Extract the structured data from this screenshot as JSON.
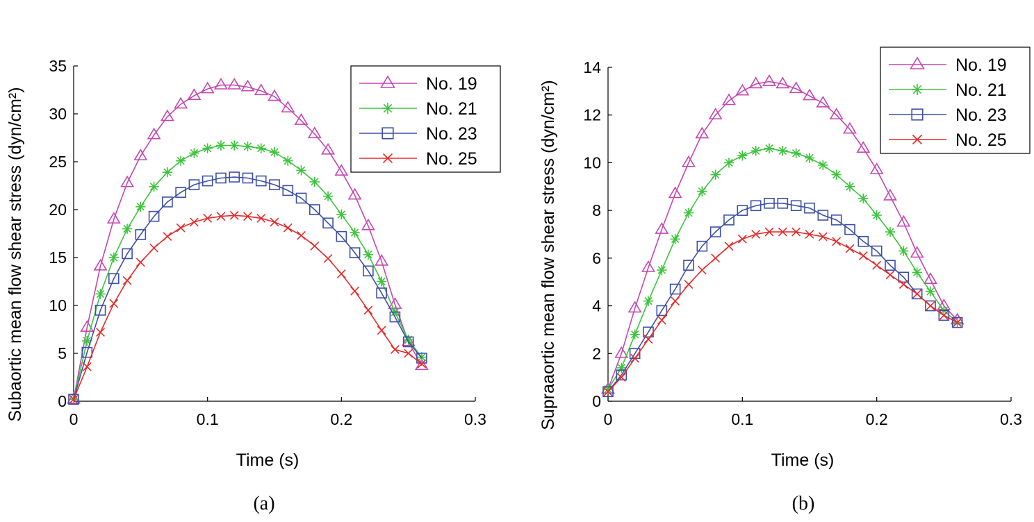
{
  "chart_data": [
    {
      "type": "line",
      "panel_label": "(a)",
      "title": "",
      "xlabel": "Time (s)",
      "ylabel": "Subaortic mean flow shear stress (dyn/cm²)",
      "xlim": [
        0,
        0.3
      ],
      "ylim": [
        0,
        35
      ],
      "xticks": [
        0,
        0.1,
        0.2,
        0.3
      ],
      "xtick_labels": [
        "0",
        "0.1",
        "0.2",
        "0.3"
      ],
      "yticks": [
        0,
        5,
        10,
        15,
        20,
        25,
        30,
        35
      ],
      "ytick_labels": [
        "0",
        "5",
        "10",
        "15",
        "20",
        "25",
        "30",
        "35"
      ],
      "grid": false,
      "legend_position": "top-right",
      "x": [
        0,
        0.01,
        0.02,
        0.03,
        0.04,
        0.05,
        0.06,
        0.07,
        0.08,
        0.09,
        0.1,
        0.11,
        0.12,
        0.13,
        0.14,
        0.15,
        0.16,
        0.17,
        0.18,
        0.19,
        0.2,
        0.21,
        0.22,
        0.23,
        0.24,
        0.25,
        0.26
      ],
      "series": [
        {
          "name": "No. 19",
          "color": "#c646b2",
          "marker": "triangle",
          "values": [
            0.2,
            7.7,
            14.1,
            19.0,
            22.8,
            25.6,
            27.8,
            29.7,
            31.0,
            31.9,
            32.6,
            33.0,
            33.0,
            32.8,
            32.4,
            31.8,
            30.6,
            29.3,
            27.9,
            26.2,
            24.0,
            21.5,
            18.3,
            14.6,
            10.1,
            6.2,
            3.7
          ]
        },
        {
          "name": "No. 21",
          "color": "#3dc43d",
          "marker": "asterisk",
          "values": [
            0.2,
            6.3,
            11.2,
            15.0,
            18.0,
            20.3,
            22.4,
            23.9,
            25.1,
            25.9,
            26.4,
            26.7,
            26.7,
            26.6,
            26.4,
            26.0,
            25.1,
            24.1,
            22.9,
            21.4,
            19.5,
            17.6,
            15.3,
            12.5,
            9.3,
            6.4,
            4.6
          ]
        },
        {
          "name": "No. 23",
          "color": "#3c4fa8",
          "marker": "square",
          "values": [
            0.2,
            5.1,
            9.5,
            12.8,
            15.4,
            17.4,
            19.3,
            20.8,
            21.8,
            22.6,
            23.0,
            23.3,
            23.4,
            23.3,
            23.0,
            22.6,
            22.0,
            21.2,
            20.0,
            18.6,
            17.2,
            15.5,
            13.6,
            11.3,
            8.8,
            6.2,
            4.5
          ]
        },
        {
          "name": "No. 25",
          "color": "#e62a2a",
          "marker": "x",
          "values": [
            0.2,
            3.6,
            7.2,
            10.2,
            12.6,
            14.5,
            16.0,
            17.2,
            18.1,
            18.7,
            19.1,
            19.3,
            19.4,
            19.3,
            19.1,
            18.7,
            18.1,
            17.3,
            16.2,
            14.9,
            13.3,
            11.5,
            9.5,
            7.4,
            5.4,
            5.0,
            3.9
          ]
        }
      ]
    },
    {
      "type": "line",
      "panel_label": "(b)",
      "title": "",
      "xlabel": "Time (s)",
      "ylabel": "Supraaortic mean flow shear stress (dyn/cm²)",
      "xlim": [
        0,
        0.3
      ],
      "ylim": [
        0,
        14
      ],
      "xticks": [
        0,
        0.1,
        0.2,
        0.3
      ],
      "xtick_labels": [
        "0",
        "0.1",
        "0.2",
        "0.3"
      ],
      "yticks": [
        0,
        2,
        4,
        6,
        8,
        10,
        12,
        14
      ],
      "ytick_labels": [
        "0",
        "2",
        "4",
        "6",
        "8",
        "10",
        "12",
        "14"
      ],
      "grid": false,
      "legend_position": "top-right",
      "x": [
        0,
        0.01,
        0.02,
        0.03,
        0.04,
        0.05,
        0.06,
        0.07,
        0.08,
        0.09,
        0.1,
        0.11,
        0.12,
        0.13,
        0.14,
        0.15,
        0.16,
        0.17,
        0.18,
        0.19,
        0.2,
        0.21,
        0.22,
        0.23,
        0.24,
        0.25,
        0.26
      ],
      "series": [
        {
          "name": "No. 19",
          "color": "#c646b2",
          "marker": "triangle",
          "values": [
            0.5,
            2.0,
            3.9,
            5.6,
            7.2,
            8.7,
            10.0,
            11.2,
            12.0,
            12.6,
            13.0,
            13.3,
            13.4,
            13.3,
            13.1,
            12.8,
            12.5,
            12.0,
            11.4,
            10.6,
            9.7,
            8.6,
            7.5,
            6.2,
            5.1,
            4.0,
            3.4
          ]
        },
        {
          "name": "No. 21",
          "color": "#3dc43d",
          "marker": "asterisk",
          "values": [
            0.5,
            1.4,
            2.8,
            4.2,
            5.5,
            6.8,
            7.9,
            8.8,
            9.5,
            10.0,
            10.3,
            10.5,
            10.6,
            10.5,
            10.4,
            10.2,
            9.9,
            9.5,
            9.0,
            8.5,
            7.8,
            7.1,
            6.3,
            5.4,
            4.6,
            3.8,
            3.3
          ]
        },
        {
          "name": "No. 23",
          "color": "#3c4fa8",
          "marker": "square",
          "values": [
            0.4,
            1.1,
            2.0,
            2.9,
            3.8,
            4.7,
            5.7,
            6.5,
            7.1,
            7.6,
            8.0,
            8.2,
            8.3,
            8.3,
            8.2,
            8.1,
            7.8,
            7.6,
            7.2,
            6.7,
            6.3,
            5.7,
            5.2,
            4.5,
            4.0,
            3.6,
            3.3
          ]
        },
        {
          "name": "No. 25",
          "color": "#e62a2a",
          "marker": "x",
          "values": [
            0.4,
            1.0,
            1.8,
            2.6,
            3.4,
            4.2,
            4.9,
            5.5,
            6.0,
            6.5,
            6.8,
            7.0,
            7.1,
            7.1,
            7.1,
            7.0,
            6.9,
            6.7,
            6.4,
            6.1,
            5.7,
            5.3,
            4.9,
            4.5,
            4.0,
            3.6,
            3.3
          ]
        }
      ]
    }
  ]
}
